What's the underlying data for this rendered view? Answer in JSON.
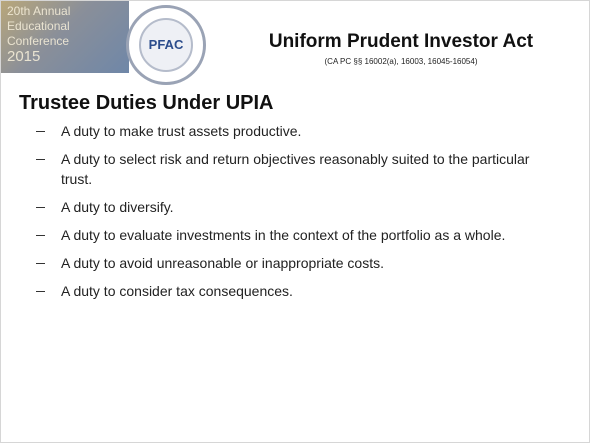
{
  "logo": {
    "lines": [
      "20th Annual",
      "Educational",
      "Conference",
      "2015"
    ],
    "badge": "PFAC"
  },
  "header": {
    "title": "Uniform Prudent Investor Act",
    "subtitle": "(CA PC §§ 16002(a), 16003, 16045-16054)"
  },
  "heading": "Trustee Duties Under UPIA",
  "bullets": [
    "A duty to make trust assets productive.",
    "A duty to select risk and return objectives reasonably suited to the particular trust.",
    "A duty to diversify.",
    "A duty to evaluate investments in the context of the portfolio as a whole.",
    "A duty to avoid unreasonable or inappropriate costs.",
    "A duty to consider tax consequences."
  ]
}
